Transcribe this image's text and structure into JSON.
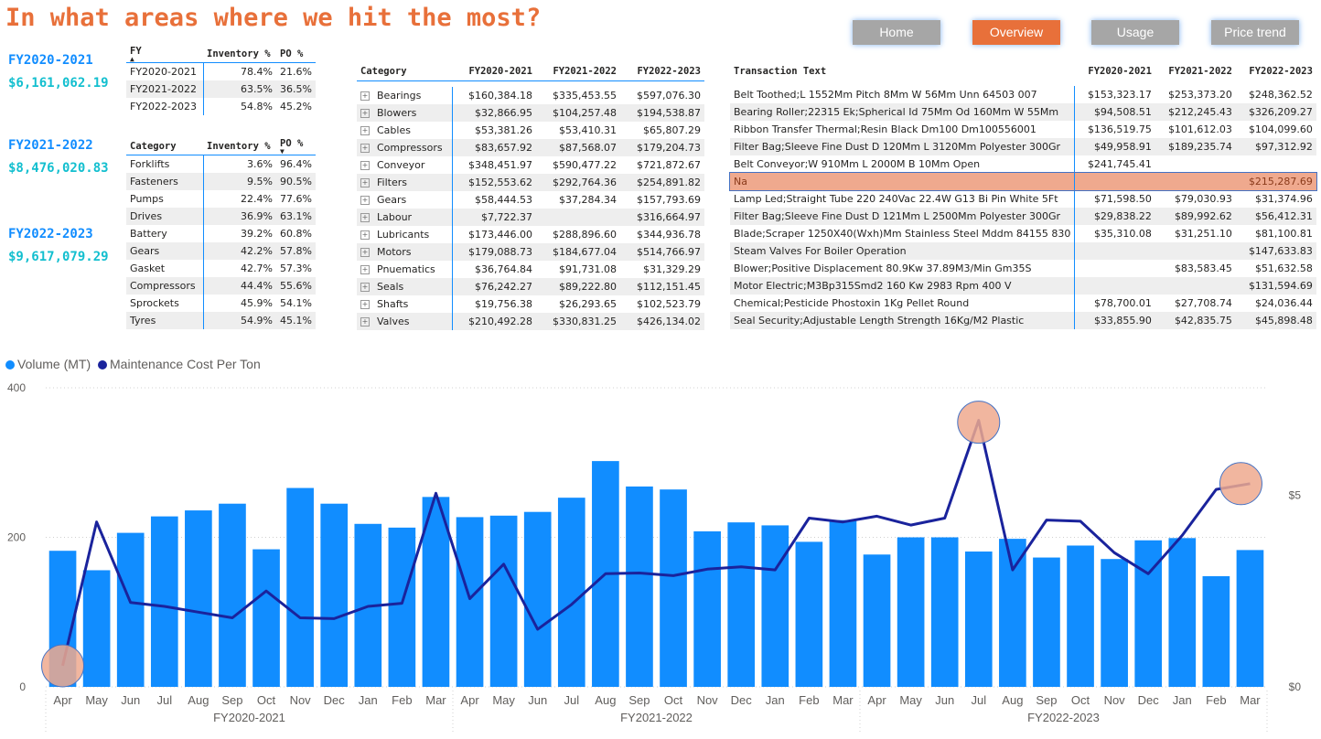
{
  "title": "In what areas where we hit the most?",
  "nav": [
    "Home",
    "Overview",
    "Usage",
    "Price trend"
  ],
  "nav_active": "Overview",
  "fy_cards": [
    {
      "label": "FY2020-2021",
      "value": "$6,161,062.19"
    },
    {
      "label": "FY2021-2022",
      "value": "$8,476,020.83"
    },
    {
      "label": "FY2022-2023",
      "value": "$9,617,079.29"
    }
  ],
  "fy_table": {
    "headers": [
      "FY",
      "Inventory %",
      "PO %"
    ],
    "rows": [
      [
        "FY2020-2021",
        "78.4%",
        "21.6%"
      ],
      [
        "FY2021-2022",
        "63.5%",
        "36.5%"
      ],
      [
        "FY2022-2023",
        "54.8%",
        "45.2%"
      ]
    ]
  },
  "cat_table": {
    "headers": [
      "Category",
      "Inventory %",
      "PO %"
    ],
    "rows": [
      [
        "Forklifts",
        "3.6%",
        "96.4%"
      ],
      [
        "Fasteners",
        "9.5%",
        "90.5%"
      ],
      [
        "Pumps",
        "22.4%",
        "77.6%"
      ],
      [
        "Drives",
        "36.9%",
        "63.1%"
      ],
      [
        "Battery",
        "39.2%",
        "60.8%"
      ],
      [
        "Gears",
        "42.2%",
        "57.8%"
      ],
      [
        "Gasket",
        "42.7%",
        "57.3%"
      ],
      [
        "Compressors",
        "44.4%",
        "55.6%"
      ],
      [
        "Sprockets",
        "45.9%",
        "54.1%"
      ],
      [
        "Tyres",
        "54.9%",
        "45.1%"
      ]
    ]
  },
  "matrix": {
    "headers": [
      "Category",
      "FY2020-2021",
      "FY2021-2022",
      "FY2022-2023"
    ],
    "rows": [
      [
        "Bearings",
        "$160,384.18",
        "$335,453.55",
        "$597,076.30"
      ],
      [
        "Blowers",
        "$32,866.95",
        "$104,257.48",
        "$194,538.87"
      ],
      [
        "Cables",
        "$53,381.26",
        "$53,410.31",
        "$65,807.29"
      ],
      [
        "Compressors",
        "$83,657.92",
        "$87,568.07",
        "$179,204.73"
      ],
      [
        "Conveyor",
        "$348,451.97",
        "$590,477.22",
        "$721,872.67"
      ],
      [
        "Filters",
        "$152,553.62",
        "$292,764.36",
        "$254,891.82"
      ],
      [
        "Gears",
        "$58,444.53",
        "$37,284.34",
        "$157,793.69"
      ],
      [
        "Labour",
        "$7,722.37",
        "",
        "$316,664.97"
      ],
      [
        "Lubricants",
        "$173,446.00",
        "$288,896.60",
        "$344,936.78"
      ],
      [
        "Motors",
        "$179,088.73",
        "$184,677.04",
        "$514,766.97"
      ],
      [
        "Pnuematics",
        "$36,764.84",
        "$91,731.08",
        "$31,329.29"
      ],
      [
        "Seals",
        "$76,242.27",
        "$89,222.80",
        "$112,151.45"
      ],
      [
        "Shafts",
        "$19,756.38",
        "$26,293.65",
        "$102,523.79"
      ],
      [
        "Valves",
        "$210,492.28",
        "$330,831.25",
        "$426,134.02"
      ]
    ]
  },
  "transactions": {
    "headers": [
      "Transaction Text",
      "FY2020-2021",
      "FY2021-2022",
      "FY2022-2023"
    ],
    "rows": [
      [
        "Belt Toothed;L 1552Mm Pitch 8Mm W 56Mm Unn 64503 007",
        "$153,323.17",
        "$253,373.20",
        "$248,362.52"
      ],
      [
        "Bearing Roller;22315 Ek;Spherical Id 75Mm Od 160Mm W 55Mm",
        "$94,508.51",
        "$212,245.43",
        "$326,209.27"
      ],
      [
        "Ribbon Transfer Thermal;Resin Black Dm100 Dm100556001",
        "$136,519.75",
        "$101,612.03",
        "$104,099.60"
      ],
      [
        "Filter Bag;Sleeve Fine Dust D 120Mm L 3120Mm Polyester 300Gr",
        "$49,958.91",
        "$189,235.74",
        "$97,312.92"
      ],
      [
        "Belt Conveyor;W 910Mm L 2000M B 10Mm Open",
        "$241,745.41",
        "",
        ""
      ],
      [
        "Na",
        "",
        "",
        "$215,287.69"
      ],
      [
        "Lamp Led;Straight Tube 220 240Vac 22.4W G13 Bi Pin White 5Ft",
        "$71,598.50",
        "$79,030.93",
        "$31,374.96"
      ],
      [
        "Filter Bag;Sleeve Fine Dust D 121Mm L 2500Mm Polyester 300Gr",
        "$29,838.22",
        "$89,992.62",
        "$56,412.31"
      ],
      [
        "Blade;Scraper 1250X40(Wxh)Mm Stainless Steel Mddm 84155 830",
        "$35,310.08",
        "$31,251.10",
        "$81,100.81"
      ],
      [
        "Steam Valves For Boiler Operation",
        "",
        "",
        "$147,633.83"
      ],
      [
        "Blower;Positive Displacement 80.9Kw 37.89M3/Min Gm35S",
        "",
        "$83,583.45",
        "$51,632.58"
      ],
      [
        "Motor Electric;M3Bp315Smd2 160 Kw 2983 Rpm 400 V",
        "",
        "",
        "$131,594.69"
      ],
      [
        "Chemical;Pesticide Phostoxin 1Kg Pellet Round",
        "$78,700.01",
        "$27,708.74",
        "$24,036.44"
      ],
      [
        "Seal Security;Adjustable Length Strength 16Kg/M2 Plastic",
        "$33,855.90",
        "$42,835.75",
        "$45,898.48"
      ]
    ]
  },
  "colors": {
    "accent": "#E8703A",
    "bar": "#118DFF",
    "line": "#1A239C",
    "highlight": "#EFA98E"
  },
  "chart_data": {
    "type": "bar",
    "legend": [
      "Volume (MT)",
      "Maintenance Cost Per Ton"
    ],
    "categories": [
      "Apr",
      "May",
      "Jun",
      "Jul",
      "Aug",
      "Sep",
      "Oct",
      "Nov",
      "Dec",
      "Jan",
      "Feb",
      "Mar",
      "Apr",
      "May",
      "Jun",
      "Jul",
      "Aug",
      "Sep",
      "Oct",
      "Nov",
      "Dec",
      "Jan",
      "Feb",
      "Mar",
      "Apr",
      "May",
      "Jun",
      "Jul",
      "Aug",
      "Sep",
      "Oct",
      "Nov",
      "Dec",
      "Jan",
      "Feb",
      "Mar"
    ],
    "groups": [
      "FY2020-2021",
      "FY2021-2022",
      "FY2022-2023"
    ],
    "series": [
      {
        "name": "Volume (MT)",
        "type": "bar",
        "axis": "left",
        "values": [
          182,
          156,
          206,
          228,
          236,
          245,
          184,
          266,
          245,
          218,
          213,
          254,
          227,
          229,
          234,
          253,
          302,
          268,
          264,
          208,
          220,
          216,
          194,
          223,
          177,
          200,
          200,
          181,
          198,
          173,
          189,
          171,
          196,
          199,
          148,
          183
        ]
      },
      {
        "name": "Maintenance Cost Per Ton",
        "type": "line",
        "axis": "right",
        "values": [
          0.55,
          4.3,
          2.2,
          2.1,
          1.95,
          1.8,
          2.5,
          1.8,
          1.78,
          2.1,
          2.18,
          5.05,
          2.3,
          3.2,
          1.5,
          2.15,
          2.95,
          2.97,
          2.9,
          3.07,
          3.13,
          3.05,
          4.4,
          4.3,
          4.45,
          4.22,
          4.4,
          6.95,
          3.05,
          4.35,
          4.32,
          3.5,
          2.95,
          3.95,
          5.15,
          5.3
        ]
      }
    ],
    "left_axis": {
      "ticks": [
        "0",
        "200",
        "400"
      ],
      "ylim": [
        0,
        400
      ]
    },
    "right_axis": {
      "ticks": [
        "$0",
        "$5"
      ],
      "ylim": [
        0,
        7.8
      ]
    },
    "grid": true,
    "legend_position": "top-left",
    "highlights": [
      0,
      27,
      35
    ]
  }
}
